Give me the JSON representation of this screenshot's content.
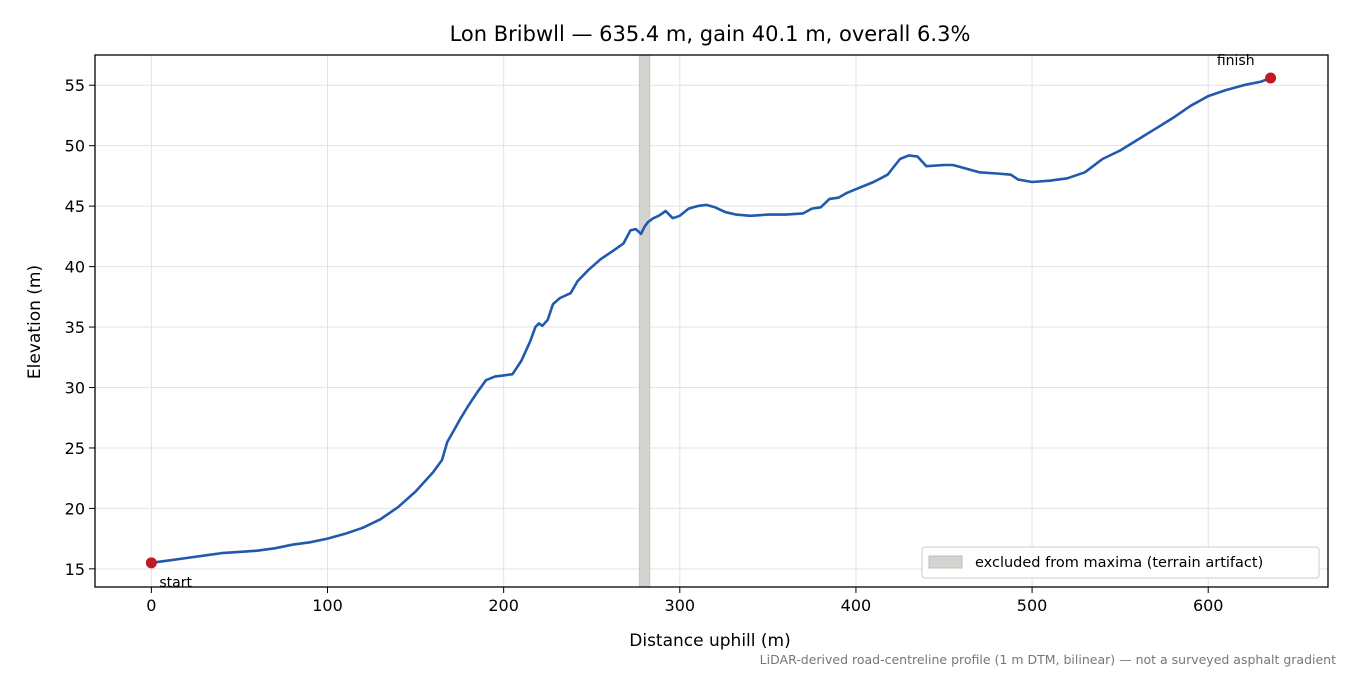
{
  "chart_data": {
    "type": "line",
    "title": "Lon Bribwll — 635.4 m, gain 40.1 m, overall 6.3%",
    "xlabel": "Distance uphill (m)",
    "ylabel": "Elevation (m)",
    "xlim": [
      -32,
      668
    ],
    "ylim": [
      13.5,
      57.5
    ],
    "xticks": [
      0,
      100,
      200,
      300,
      400,
      500,
      600
    ],
    "yticks": [
      15,
      20,
      25,
      30,
      35,
      40,
      45,
      50,
      55
    ],
    "grid": true,
    "line_color": "#1f5aad",
    "series": [
      {
        "x": [
          0,
          10,
          20,
          30,
          40,
          50,
          60,
          70,
          80,
          90,
          100,
          110,
          120,
          130,
          140,
          150,
          160,
          165,
          168,
          170,
          175,
          180,
          185,
          190,
          195,
          200,
          205,
          210,
          215,
          218,
          220,
          222,
          225,
          228,
          232,
          238,
          242,
          248,
          255,
          262,
          268,
          272,
          275,
          278,
          280,
          282,
          285,
          288,
          292,
          296,
          300,
          305,
          310,
          315,
          320,
          326,
          332,
          340,
          350,
          360,
          370,
          375,
          380,
          385,
          390,
          395,
          400,
          410,
          418,
          425,
          430,
          435,
          440,
          450,
          455,
          460,
          470,
          480,
          488,
          492,
          500,
          510,
          520,
          530,
          540,
          550,
          560,
          570,
          580,
          590,
          600,
          610,
          620,
          630,
          635.4
        ],
        "y": [
          15.5,
          15.7,
          15.9,
          16.1,
          16.3,
          16.4,
          16.5,
          16.7,
          17.0,
          17.2,
          17.5,
          17.9,
          18.4,
          19.1,
          20.1,
          21.4,
          23.0,
          24.0,
          25.5,
          26.0,
          27.3,
          28.5,
          29.6,
          30.6,
          30.9,
          31.0,
          31.1,
          32.2,
          33.8,
          35.0,
          35.3,
          35.1,
          35.6,
          36.9,
          37.4,
          37.8,
          38.8,
          39.7,
          40.6,
          41.3,
          41.9,
          43.0,
          43.1,
          42.7,
          43.3,
          43.7,
          44.0,
          44.2,
          44.6,
          44.0,
          44.2,
          44.8,
          45.0,
          45.1,
          44.9,
          44.5,
          44.3,
          44.2,
          44.3,
          44.3,
          44.4,
          44.8,
          44.9,
          45.6,
          45.7,
          46.1,
          46.4,
          47.0,
          47.6,
          48.9,
          49.2,
          49.1,
          48.3,
          48.4,
          48.4,
          48.2,
          47.8,
          47.7,
          47.6,
          47.2,
          47.0,
          47.1,
          47.3,
          47.8,
          48.9,
          49.6,
          50.5,
          51.4,
          52.3,
          53.3,
          54.1,
          54.6,
          55.0,
          55.3,
          55.6
        ]
      }
    ],
    "markers": [
      {
        "label": "start",
        "x": 0,
        "y": 15.5,
        "color": "#c01a26"
      },
      {
        "label": "finish",
        "x": 635.4,
        "y": 55.6,
        "color": "#c01a26"
      }
    ],
    "excluded_band": {
      "x0": 277,
      "x1": 283,
      "color": "#d3d3d0"
    },
    "legend": {
      "position": "lower right",
      "entries": [
        "excluded from maxima (terrain artifact)"
      ]
    },
    "footnote": "LiDAR-derived road-centreline profile (1 m DTM, bilinear) — not a surveyed asphalt gradient"
  }
}
